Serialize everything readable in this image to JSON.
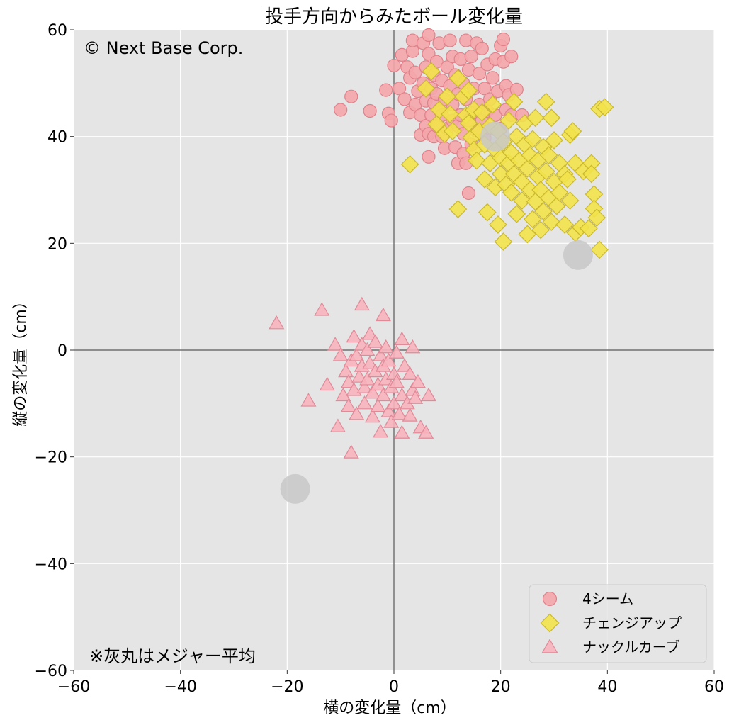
{
  "chart_data": {
    "type": "scatter",
    "title": "投手方向からみたボール変化量",
    "xlabel": "横の変化量（cm）",
    "ylabel": "縦の変化量（cm）",
    "xlim": [
      -60,
      60
    ],
    "ylim": [
      -60,
      60
    ],
    "xticks": [
      -60,
      -40,
      -20,
      0,
      20,
      40,
      60
    ],
    "yticks": [
      -60,
      -40,
      -20,
      0,
      20,
      40,
      60
    ],
    "xtick_labels": [
      "−60",
      "−40",
      "−20",
      "0",
      "20",
      "40",
      "60"
    ],
    "ytick_labels": [
      "−60",
      "−40",
      "−20",
      "0",
      "20",
      "40",
      "60"
    ],
    "grid": true,
    "legend_position": "bottom-right",
    "copyright": "© Next Base Corp.",
    "note": "※灰丸はメジャー平均",
    "colors": {
      "plot_background": "#e5e5e5",
      "grid": "#ffffff",
      "zero_line": "#555555",
      "four_seam_fill": "#f4a6aa",
      "four_seam_edge": "#e0808a",
      "changeup_fill": "#f2e24a",
      "changeup_edge": "#c9b830",
      "curve_fill": "#f7b3bd",
      "curve_edge": "#e08a98",
      "mlb_average": "#c8c8c8"
    },
    "series": [
      {
        "name": "4シーム",
        "marker": "circle",
        "points": [
          [
            -10,
            45
          ],
          [
            -8,
            47.5
          ],
          [
            -4.5,
            44.8
          ],
          [
            -1.5,
            48.7
          ],
          [
            -1,
            44.3
          ],
          [
            -0.5,
            43
          ],
          [
            0,
            53.3
          ],
          [
            1,
            49
          ],
          [
            1.5,
            55.3
          ],
          [
            2,
            47
          ],
          [
            2.5,
            53
          ],
          [
            3,
            44.5
          ],
          [
            3,
            51
          ],
          [
            3.5,
            56
          ],
          [
            3.5,
            58
          ],
          [
            4,
            46
          ],
          [
            4,
            52
          ],
          [
            4.5,
            48.5
          ],
          [
            5,
            40.3
          ],
          [
            5,
            44
          ],
          [
            5.5,
            50
          ],
          [
            5.5,
            57.5
          ],
          [
            6,
            42
          ],
          [
            6,
            46.7
          ],
          [
            6,
            53
          ],
          [
            6.5,
            36.2
          ],
          [
            6.5,
            40.5
          ],
          [
            6.5,
            55.5
          ],
          [
            6.5,
            59
          ],
          [
            7,
            44
          ],
          [
            7,
            49
          ],
          [
            7.5,
            40
          ],
          [
            7.5,
            46.3
          ],
          [
            7.5,
            51.5
          ],
          [
            8,
            42
          ],
          [
            8,
            48
          ],
          [
            8,
            54
          ],
          [
            8.5,
            45
          ],
          [
            8.5,
            57.5
          ],
          [
            9,
            40
          ],
          [
            9,
            44
          ],
          [
            9,
            50.5
          ],
          [
            9.5,
            37.8
          ],
          [
            9.5,
            47
          ],
          [
            10,
            41.5
          ],
          [
            10,
            53
          ],
          [
            10.5,
            49.5
          ],
          [
            10.5,
            58
          ],
          [
            11,
            43
          ],
          [
            11,
            46
          ],
          [
            11,
            55
          ],
          [
            11.5,
            38
          ],
          [
            11.5,
            51.5
          ],
          [
            12,
            35
          ],
          [
            12,
            42
          ],
          [
            12,
            48
          ],
          [
            12.5,
            44
          ],
          [
            12.5,
            54.5
          ],
          [
            13,
            36.8
          ],
          [
            13,
            40.5
          ],
          [
            13,
            50
          ],
          [
            13.5,
            35
          ],
          [
            13.5,
            47
          ],
          [
            13.5,
            58
          ],
          [
            14,
            29.4
          ],
          [
            14,
            43
          ],
          [
            14,
            52.5
          ],
          [
            14.5,
            38.5
          ],
          [
            14.5,
            55
          ],
          [
            15,
            44.5
          ],
          [
            15,
            49
          ],
          [
            15.5,
            41
          ],
          [
            15.5,
            57.5
          ],
          [
            16,
            46
          ],
          [
            16,
            51.8
          ],
          [
            16.5,
            43
          ],
          [
            16.5,
            56.5
          ],
          [
            17,
            39.7
          ],
          [
            17,
            49
          ],
          [
            17.5,
            44.8
          ],
          [
            17.5,
            53.5
          ],
          [
            18,
            41.5
          ],
          [
            18,
            47
          ],
          [
            18.5,
            51
          ],
          [
            19,
            44
          ],
          [
            19,
            54.5
          ],
          [
            19.5,
            48.5
          ],
          [
            20,
            41.5
          ],
          [
            20,
            57
          ],
          [
            20.5,
            54
          ],
          [
            20.5,
            58.2
          ],
          [
            21,
            45
          ],
          [
            21,
            49.5
          ],
          [
            21.5,
            47.8
          ],
          [
            22,
            55
          ],
          [
            22,
            44
          ],
          [
            23,
            48.8
          ],
          [
            24,
            44
          ]
        ]
      },
      {
        "name": "チェンジアップ",
        "marker": "diamond",
        "points": [
          [
            3,
            34.8
          ],
          [
            6,
            49
          ],
          [
            7,
            52.2
          ],
          [
            8,
            42.3
          ],
          [
            8.5,
            45
          ],
          [
            9.5,
            40.5
          ],
          [
            10,
            47.5
          ],
          [
            10.5,
            44.2
          ],
          [
            11,
            41
          ],
          [
            12,
            26.4
          ],
          [
            12,
            50.9
          ],
          [
            13,
            47.5
          ],
          [
            13.5,
            44
          ],
          [
            14,
            42.5
          ],
          [
            14,
            48.6
          ],
          [
            14.5,
            39.8
          ],
          [
            15,
            37.5
          ],
          [
            15,
            45
          ],
          [
            15.5,
            35.5
          ],
          [
            16,
            41
          ],
          [
            16.5,
            44.5
          ],
          [
            17,
            32
          ],
          [
            17,
            38.5
          ],
          [
            17.5,
            25.8
          ],
          [
            18,
            35
          ],
          [
            18,
            42
          ],
          [
            18.5,
            46
          ],
          [
            19,
            30.5
          ],
          [
            19,
            37.5
          ],
          [
            19.5,
            41
          ],
          [
            19.5,
            23.5
          ],
          [
            20,
            33
          ],
          [
            20,
            36
          ],
          [
            20.5,
            20.3
          ],
          [
            20.5,
            39
          ],
          [
            21,
            31
          ],
          [
            21.5,
            35
          ],
          [
            21.5,
            43
          ],
          [
            22,
            29.5
          ],
          [
            22,
            37
          ],
          [
            22.5,
            33
          ],
          [
            22.5,
            46.5
          ],
          [
            23,
            40
          ],
          [
            23,
            25.5
          ],
          [
            23.5,
            35.5
          ],
          [
            24,
            28
          ],
          [
            24,
            31.5
          ],
          [
            24.5,
            38.5
          ],
          [
            24.5,
            42.5
          ],
          [
            25,
            21.7
          ],
          [
            25,
            34
          ],
          [
            25.5,
            30
          ],
          [
            25.5,
            36.5
          ],
          [
            26,
            24.5
          ],
          [
            26,
            39.5
          ],
          [
            26.5,
            27.8
          ],
          [
            26.5,
            43.5
          ],
          [
            27,
            32.5
          ],
          [
            27,
            35.5
          ],
          [
            27.5,
            22.5
          ],
          [
            27.5,
            30
          ],
          [
            28,
            38
          ],
          [
            28,
            26
          ],
          [
            28.5,
            46.5
          ],
          [
            28.5,
            33.5
          ],
          [
            29,
            28.5
          ],
          [
            29,
            36.5
          ],
          [
            29.5,
            24
          ],
          [
            29.5,
            43.5
          ],
          [
            30,
            31.5
          ],
          [
            30,
            39.3
          ],
          [
            30.5,
            27
          ],
          [
            31,
            35
          ],
          [
            31,
            29.5
          ],
          [
            32,
            33
          ],
          [
            32,
            23.5
          ],
          [
            32.5,
            32
          ],
          [
            33,
            28
          ],
          [
            33,
            40.3
          ],
          [
            33.5,
            41
          ],
          [
            34,
            22
          ],
          [
            34,
            35
          ],
          [
            35,
            23
          ],
          [
            35.5,
            33.5
          ],
          [
            36.5,
            22.8
          ],
          [
            37,
            35
          ],
          [
            37,
            33
          ],
          [
            37.5,
            29.2
          ],
          [
            37.5,
            26.5
          ],
          [
            38,
            24.8
          ],
          [
            38.5,
            18.8
          ],
          [
            38.5,
            45.2
          ],
          [
            39.5,
            45.5
          ]
        ]
      },
      {
        "name": "ナックルカーブ",
        "marker": "triangle",
        "points": [
          [
            -22,
            5
          ],
          [
            -16,
            -9.5
          ],
          [
            -13.5,
            7.5
          ],
          [
            -12.5,
            -6.5
          ],
          [
            -11,
            1
          ],
          [
            -10.5,
            -14.3
          ],
          [
            -10,
            -1
          ],
          [
            -9.5,
            -8.5
          ],
          [
            -9,
            -4
          ],
          [
            -8.5,
            -6
          ],
          [
            -8.5,
            -10.5
          ],
          [
            -8,
            -2
          ],
          [
            -8,
            -19.2
          ],
          [
            -7.5,
            2.5
          ],
          [
            -7.5,
            -7.5
          ],
          [
            -7,
            -1
          ],
          [
            -7,
            -12
          ],
          [
            -6.5,
            -5
          ],
          [
            -6,
            8.5
          ],
          [
            -6,
            -3
          ],
          [
            -6,
            1
          ],
          [
            -5.5,
            -7
          ],
          [
            -5.5,
            -10
          ],
          [
            -5,
            0
          ],
          [
            -5,
            -5.5
          ],
          [
            -4.5,
            3
          ],
          [
            -4.5,
            -2.5
          ],
          [
            -4,
            -8
          ],
          [
            -4,
            -12.5
          ],
          [
            -3.5,
            -4
          ],
          [
            -3.5,
            1.5
          ],
          [
            -3,
            -6.5
          ],
          [
            -3,
            -10.5
          ],
          [
            -2.5,
            -1
          ],
          [
            -2.5,
            -15.3
          ],
          [
            -2,
            6.5
          ],
          [
            -2,
            -3
          ],
          [
            -2,
            -8.5
          ],
          [
            -1.5,
            0.5
          ],
          [
            -1.5,
            -5.5
          ],
          [
            -1,
            -11.5
          ],
          [
            -1,
            -2
          ],
          [
            -0.5,
            -7
          ],
          [
            -0.5,
            -13.5
          ],
          [
            0,
            -4.5
          ],
          [
            0,
            -10
          ],
          [
            0.5,
            -0.5
          ],
          [
            0.5,
            -6
          ],
          [
            1,
            -12
          ],
          [
            1.5,
            2
          ],
          [
            1.5,
            -8.5
          ],
          [
            1.5,
            -15.5
          ],
          [
            2,
            -3
          ],
          [
            2.5,
            -10
          ],
          [
            3,
            -12.3
          ],
          [
            3,
            -4.5
          ],
          [
            3.5,
            0.5
          ],
          [
            3.5,
            -7.5
          ],
          [
            4,
            -9
          ],
          [
            4.5,
            -6
          ],
          [
            5,
            -14.5
          ],
          [
            6,
            -15.5
          ],
          [
            6.5,
            -8.5
          ]
        ]
      },
      {
        "name": "メジャー平均",
        "marker": "large-circle",
        "points": [
          [
            19,
            40
          ],
          [
            34.5,
            17.8
          ],
          [
            -18.5,
            -26
          ]
        ]
      }
    ]
  },
  "legend": [
    {
      "label": "4シーム",
      "marker": "circle"
    },
    {
      "label": "チェンジアップ",
      "marker": "diamond"
    },
    {
      "label": "ナックルカーブ",
      "marker": "triangle"
    }
  ]
}
